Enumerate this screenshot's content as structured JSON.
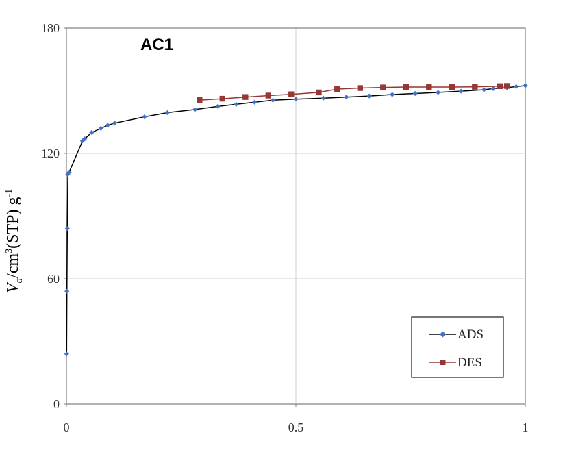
{
  "chart_data": {
    "type": "line",
    "title": "AC1",
    "xlabel": "",
    "ylabel": {
      "var": "V",
      "sub": "a",
      "text1": "/cm",
      "sup1": "3",
      "text2": "(STP) g",
      "sup2": "-1"
    },
    "xlim": [
      0,
      1
    ],
    "ylim": [
      0,
      180
    ],
    "xticks": [
      0,
      0.5,
      1
    ],
    "xtick_labels": [
      "0",
      "0.5",
      "1"
    ],
    "yticks": [
      0,
      60,
      120,
      180
    ],
    "ytick_labels": [
      "0",
      "60",
      "120",
      "180"
    ],
    "grid": true,
    "legend_position": "bottom-right",
    "series": [
      {
        "name": "ADS",
        "marker": "diamond",
        "color": "#4472C4",
        "x": [
          0.0005,
          0.001,
          0.002,
          0.003,
          0.006,
          0.035,
          0.04,
          0.055,
          0.075,
          0.09,
          0.105,
          0.17,
          0.22,
          0.28,
          0.33,
          0.37,
          0.41,
          0.45,
          0.5,
          0.56,
          0.61,
          0.66,
          0.71,
          0.76,
          0.81,
          0.86,
          0.91,
          0.93,
          0.96,
          0.98,
          1.0
        ],
        "y": [
          24,
          54,
          84,
          110,
          111,
          126,
          127,
          130,
          132,
          133.5,
          134.5,
          137.5,
          139.5,
          141,
          142.5,
          143.5,
          144.5,
          145.5,
          146,
          146.5,
          147,
          147.5,
          148.2,
          148.7,
          149.2,
          149.8,
          150.5,
          151,
          151.5,
          152,
          152.5
        ]
      },
      {
        "name": "DES",
        "marker": "square",
        "color": "#953735",
        "x": [
          0.29,
          0.34,
          0.39,
          0.44,
          0.49,
          0.55,
          0.59,
          0.64,
          0.69,
          0.74,
          0.79,
          0.84,
          0.89,
          0.945,
          0.96
        ],
        "y": [
          145.5,
          146.2,
          147,
          147.7,
          148.3,
          149.2,
          150.8,
          151.3,
          151.6,
          151.8,
          151.8,
          151.8,
          151.9,
          152.2,
          152.3
        ]
      }
    ]
  }
}
